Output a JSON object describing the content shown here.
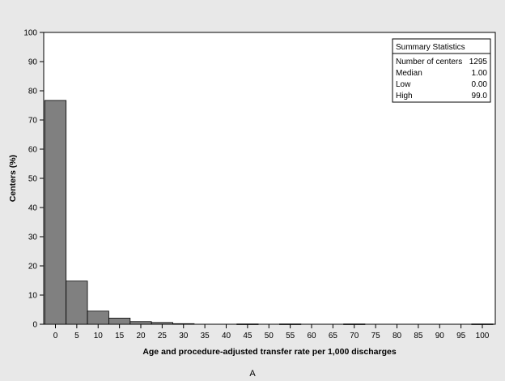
{
  "chart_data": {
    "type": "bar",
    "xlabel": "Age and procedure-adjusted transfer rate per 1,000 discharges",
    "ylabel": "Centers (%)",
    "panel_label": "A",
    "ylim": [
      0,
      100
    ],
    "y_ticks": [
      0,
      10,
      20,
      30,
      40,
      50,
      60,
      70,
      80,
      90,
      100
    ],
    "x_ticks": [
      0,
      5,
      10,
      15,
      20,
      25,
      30,
      35,
      40,
      45,
      50,
      55,
      60,
      65,
      70,
      75,
      80,
      85,
      90,
      95,
      100
    ],
    "bin_width": 5,
    "bins": [
      {
        "midpoint": 0,
        "value": 76.7
      },
      {
        "midpoint": 5,
        "value": 14.8
      },
      {
        "midpoint": 10,
        "value": 4.5
      },
      {
        "midpoint": 15,
        "value": 2.1
      },
      {
        "midpoint": 20,
        "value": 0.9
      },
      {
        "midpoint": 25,
        "value": 0.6
      },
      {
        "midpoint": 30,
        "value": 0.2
      },
      {
        "midpoint": 45,
        "value": 0.1
      },
      {
        "midpoint": 55,
        "value": 0.1
      },
      {
        "midpoint": 70,
        "value": 0.1
      },
      {
        "midpoint": 100,
        "value": 0.1
      }
    ],
    "bar_color": "#808080",
    "background_color": "#e8e8e8",
    "plot_background": "#ffffff",
    "grid": false,
    "summary_statistics": {
      "title": "Summary Statistics",
      "rows": [
        {
          "label": "Number of centers",
          "value": "1295"
        },
        {
          "label": "Median",
          "value": "1.00"
        },
        {
          "label": "Low",
          "value": "0.00"
        },
        {
          "label": "High",
          "value": "99.0"
        }
      ]
    }
  }
}
